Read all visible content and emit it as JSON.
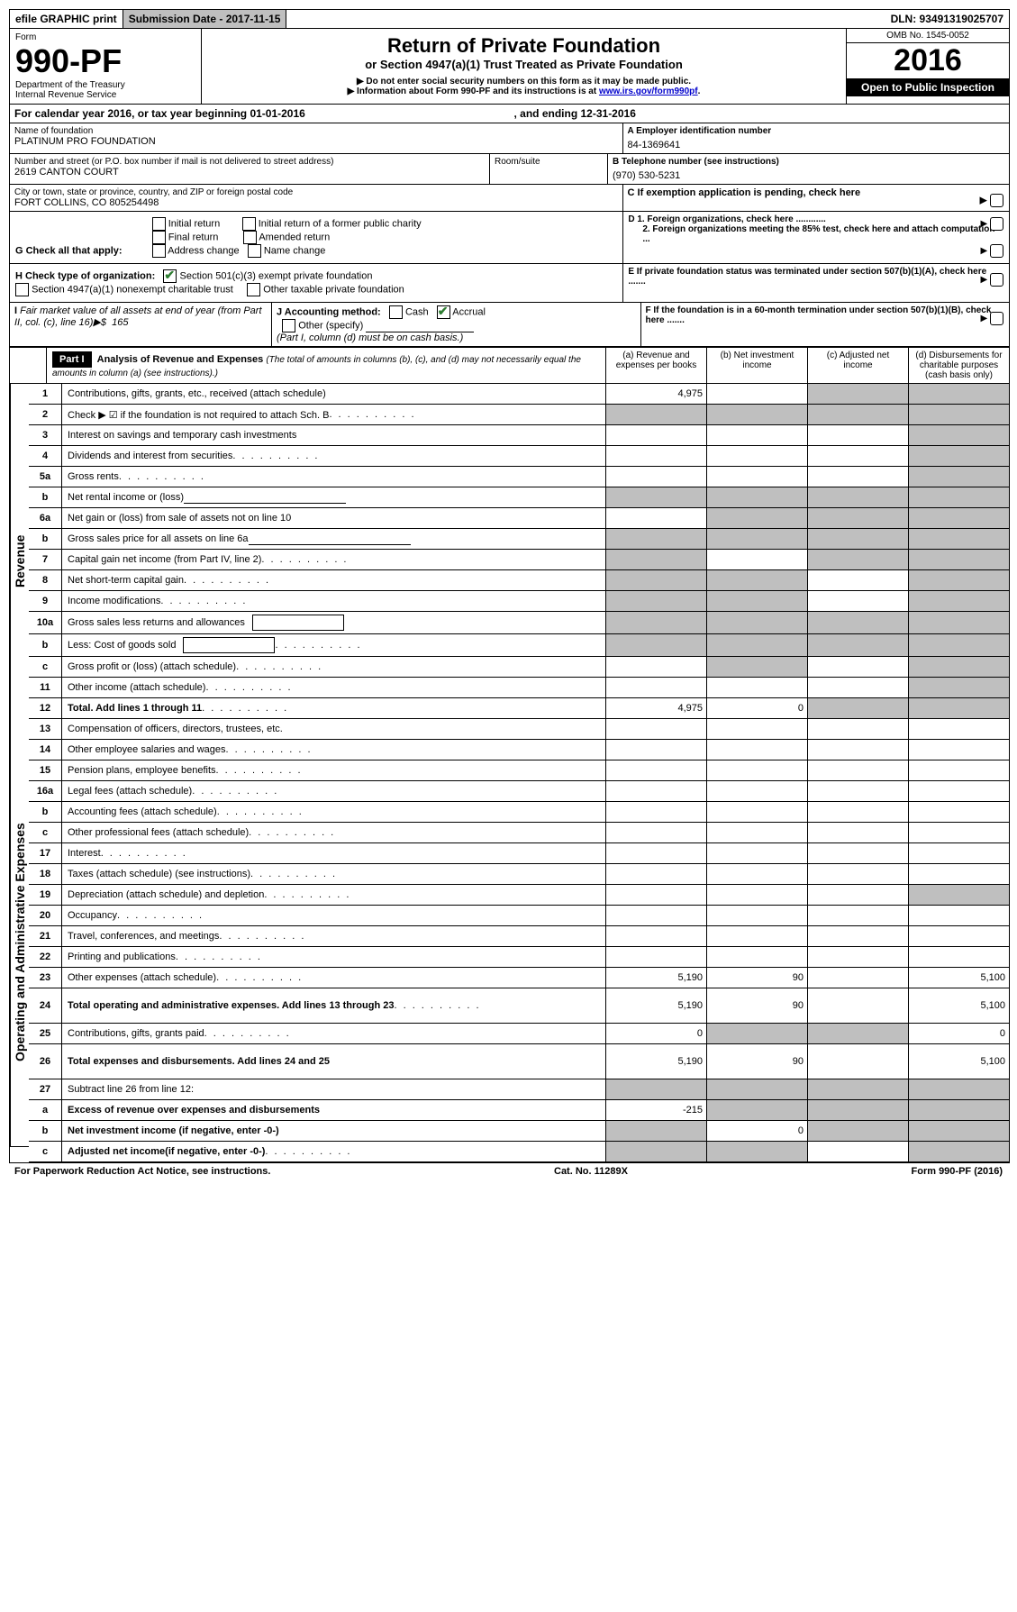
{
  "topbar": {
    "efile": "efile GRAPHIC print",
    "submission_label": "Submission Date - 2017-11-15",
    "dln": "DLN: 93491319025707"
  },
  "header": {
    "form_word": "Form",
    "form_no": "990-PF",
    "dept": "Department of the Treasury",
    "irs": "Internal Revenue Service",
    "title": "Return of Private Foundation",
    "subtitle": "or Section 4947(a)(1) Trust Treated as Private Foundation",
    "note1": "▶ Do not enter social security numbers on this form as it may be made public.",
    "note2_prefix": "▶ Information about Form 990-PF and its instructions is at ",
    "note2_link": "www.irs.gov/form990pf",
    "note2_suffix": ".",
    "omb": "OMB No. 1545-0052",
    "year": "2016",
    "open": "Open to Public Inspection"
  },
  "cal": {
    "text_a": "For calendar year 2016, or tax year beginning 01-01-2016",
    "text_b": ", and ending 12-31-2016"
  },
  "id_block": {
    "name_label": "Name of foundation",
    "name": "PLATINUM PRO FOUNDATION",
    "addr_label": "Number and street (or P.O. box number if mail is not delivered to street address)",
    "addr": "2619 CANTON COURT",
    "room_label": "Room/suite",
    "city_label": "City or town, state or province, country, and ZIP or foreign postal code",
    "city": "FORT COLLINS, CO  805254498",
    "a_label": "A Employer identification number",
    "a_val": "84-1369641",
    "b_label": "B Telephone number (see instructions)",
    "b_val": "(970) 530-5231",
    "c_label": "C If exemption application is pending, check here"
  },
  "g": {
    "label": "G Check all that apply:",
    "opts": [
      "Initial return",
      "Final return",
      "Address change",
      "Initial return of a former public charity",
      "Amended return",
      "Name change"
    ],
    "d1": "D 1. Foreign organizations, check here ............",
    "d2": "2. Foreign organizations meeting the 85% test, check here and attach computation ..."
  },
  "h": {
    "label": "H Check type of organization:",
    "o1": "Section 501(c)(3) exempt private foundation",
    "o2": "Section 4947(a)(1) nonexempt charitable trust",
    "o3": "Other taxable private foundation",
    "e": "E  If private foundation status was terminated under section 507(b)(1)(A), check here ......."
  },
  "i": {
    "label": "I Fair market value of all assets at end of year (from Part II, col. (c), line 16)▶$  165",
    "j_label": "J Accounting method:",
    "j_cash": "Cash",
    "j_accrual": "Accrual",
    "j_other": "Other (specify)",
    "j_note": "(Part I, column (d) must be on cash basis.)",
    "f": "F  If the foundation is in a 60-month termination under section 507(b)(1)(B), check here ......."
  },
  "part1": {
    "bar": "Part I",
    "title": "Analysis of Revenue and Expenses",
    "note": "(The total of amounts in columns (b), (c), and (d) may not necessarily equal the amounts in column (a) (see instructions).)",
    "cols": {
      "a": "(a)    Revenue and expenses per books",
      "b": "(b)   Net investment income",
      "c": "(c)   Adjusted net income",
      "d": "(d)   Disbursements for charitable purposes (cash basis only)"
    }
  },
  "sections": {
    "rev": "Revenue",
    "exp": "Operating and Administrative Expenses"
  },
  "lines": [
    {
      "n": "1",
      "d": "Contributions, gifts, grants, etc., received (attach schedule)",
      "a": "4,975",
      "bg": "",
      "cg": "g",
      "dg": "g"
    },
    {
      "n": "2",
      "d": "Check ▶ ☑  if the foundation is not required to attach Sch. B",
      "dots": true,
      "ag": "g",
      "bg": "g",
      "cg": "g",
      "dg": "g",
      "bold_check": true
    },
    {
      "n": "3",
      "d": "Interest on savings and temporary cash investments",
      "dg": "g"
    },
    {
      "n": "4",
      "d": "Dividends and interest from securities",
      "dots": true,
      "dg": "g"
    },
    {
      "n": "5a",
      "d": "Gross rents",
      "dots": true,
      "dg": "g"
    },
    {
      "n": "b",
      "d": "Net rental income or (loss)",
      "underline": true,
      "ag": "g",
      "bg": "g",
      "cg": "g",
      "dg": "g"
    },
    {
      "n": "6a",
      "d": "Net gain or (loss) from sale of assets not on line 10",
      "bg": "g",
      "cg": "g",
      "dg": "g"
    },
    {
      "n": "b",
      "d": "Gross sales price for all assets on line 6a",
      "underline": true,
      "ag": "g",
      "bg": "g",
      "cg": "g",
      "dg": "g"
    },
    {
      "n": "7",
      "d": "Capital gain net income (from Part IV, line 2)",
      "dots": true,
      "ag": "g",
      "cg": "g",
      "dg": "g"
    },
    {
      "n": "8",
      "d": "Net short-term capital gain",
      "dots": true,
      "ag": "g",
      "bg": "g",
      "dg": "g"
    },
    {
      "n": "9",
      "d": "Income modifications",
      "dots": true,
      "ag": "g",
      "bg": "g",
      "dg": "g"
    },
    {
      "n": "10a",
      "d": "Gross sales less returns and allowances",
      "box": true,
      "ag": "g",
      "bg": "g",
      "cg": "g",
      "dg": "g"
    },
    {
      "n": "b",
      "d": "Less: Cost of goods sold",
      "dots": true,
      "box": true,
      "ag": "g",
      "bg": "g",
      "cg": "g",
      "dg": "g"
    },
    {
      "n": "c",
      "d": "Gross profit or (loss) (attach schedule)",
      "dots": true,
      "bg": "g",
      "dg": "g"
    },
    {
      "n": "11",
      "d": "Other income (attach schedule)",
      "dots": true,
      "dg": "g"
    },
    {
      "n": "12",
      "d": "Total. Add lines 1 through 11",
      "dots": true,
      "bold": true,
      "a": "4,975",
      "b": "0",
      "cg": "g",
      "dg": "g"
    },
    {
      "n": "13",
      "d": "Compensation of officers, directors, trustees, etc.",
      "sec": "exp"
    },
    {
      "n": "14",
      "d": "Other employee salaries and wages",
      "dots": true
    },
    {
      "n": "15",
      "d": "Pension plans, employee benefits",
      "dots": true
    },
    {
      "n": "16a",
      "d": "Legal fees (attach schedule)",
      "dots": true
    },
    {
      "n": "b",
      "d": "Accounting fees (attach schedule)",
      "dots": true
    },
    {
      "n": "c",
      "d": "Other professional fees (attach schedule)",
      "dots": true
    },
    {
      "n": "17",
      "d": "Interest",
      "dots": true
    },
    {
      "n": "18",
      "d": "Taxes (attach schedule) (see instructions)",
      "dots": true
    },
    {
      "n": "19",
      "d": "Depreciation (attach schedule) and depletion",
      "dots": true,
      "dg": "g"
    },
    {
      "n": "20",
      "d": "Occupancy",
      "dots": true
    },
    {
      "n": "21",
      "d": "Travel, conferences, and meetings",
      "dots": true
    },
    {
      "n": "22",
      "d": "Printing and publications",
      "dots": true
    },
    {
      "n": "23",
      "d": "Other expenses (attach schedule)",
      "dots": true,
      "a": "5,190",
      "b": "90",
      "d_v": "5,100"
    },
    {
      "n": "24",
      "d": "Total operating and administrative expenses. Add lines 13 through 23",
      "dots": true,
      "bold": true,
      "a": "5,190",
      "b": "90",
      "d_v": "5,100",
      "tall": true
    },
    {
      "n": "25",
      "d": "Contributions, gifts, grants paid",
      "dots": true,
      "a": "0",
      "bg": "g",
      "cg": "g",
      "d_v": "0"
    },
    {
      "n": "26",
      "d": "Total expenses and disbursements. Add lines 24 and 25",
      "bold": true,
      "a": "5,190",
      "b": "90",
      "d_v": "5,100",
      "tall": true
    },
    {
      "n": "27",
      "d": "Subtract line 26 from line 12:",
      "bg": "g",
      "cg": "g",
      "dg": "g",
      "ag": "g"
    },
    {
      "n": "a",
      "d": "Excess of revenue over expenses and disbursements",
      "bold": true,
      "a": "-215",
      "bg": "g",
      "cg": "g",
      "dg": "g"
    },
    {
      "n": "b",
      "d": "Net investment income (if negative, enter -0-)",
      "bold": true,
      "ag": "g",
      "b": "0",
      "cg": "g",
      "dg": "g"
    },
    {
      "n": "c",
      "d": "Adjusted net income(if negative, enter -0-)",
      "bold": true,
      "dots": true,
      "ag": "g",
      "bg": "g",
      "dg": "g"
    }
  ],
  "footer": {
    "left": "For Paperwork Reduction Act Notice, see instructions.",
    "mid": "Cat. No. 11289X",
    "right": "Form 990-PF (2016)"
  }
}
